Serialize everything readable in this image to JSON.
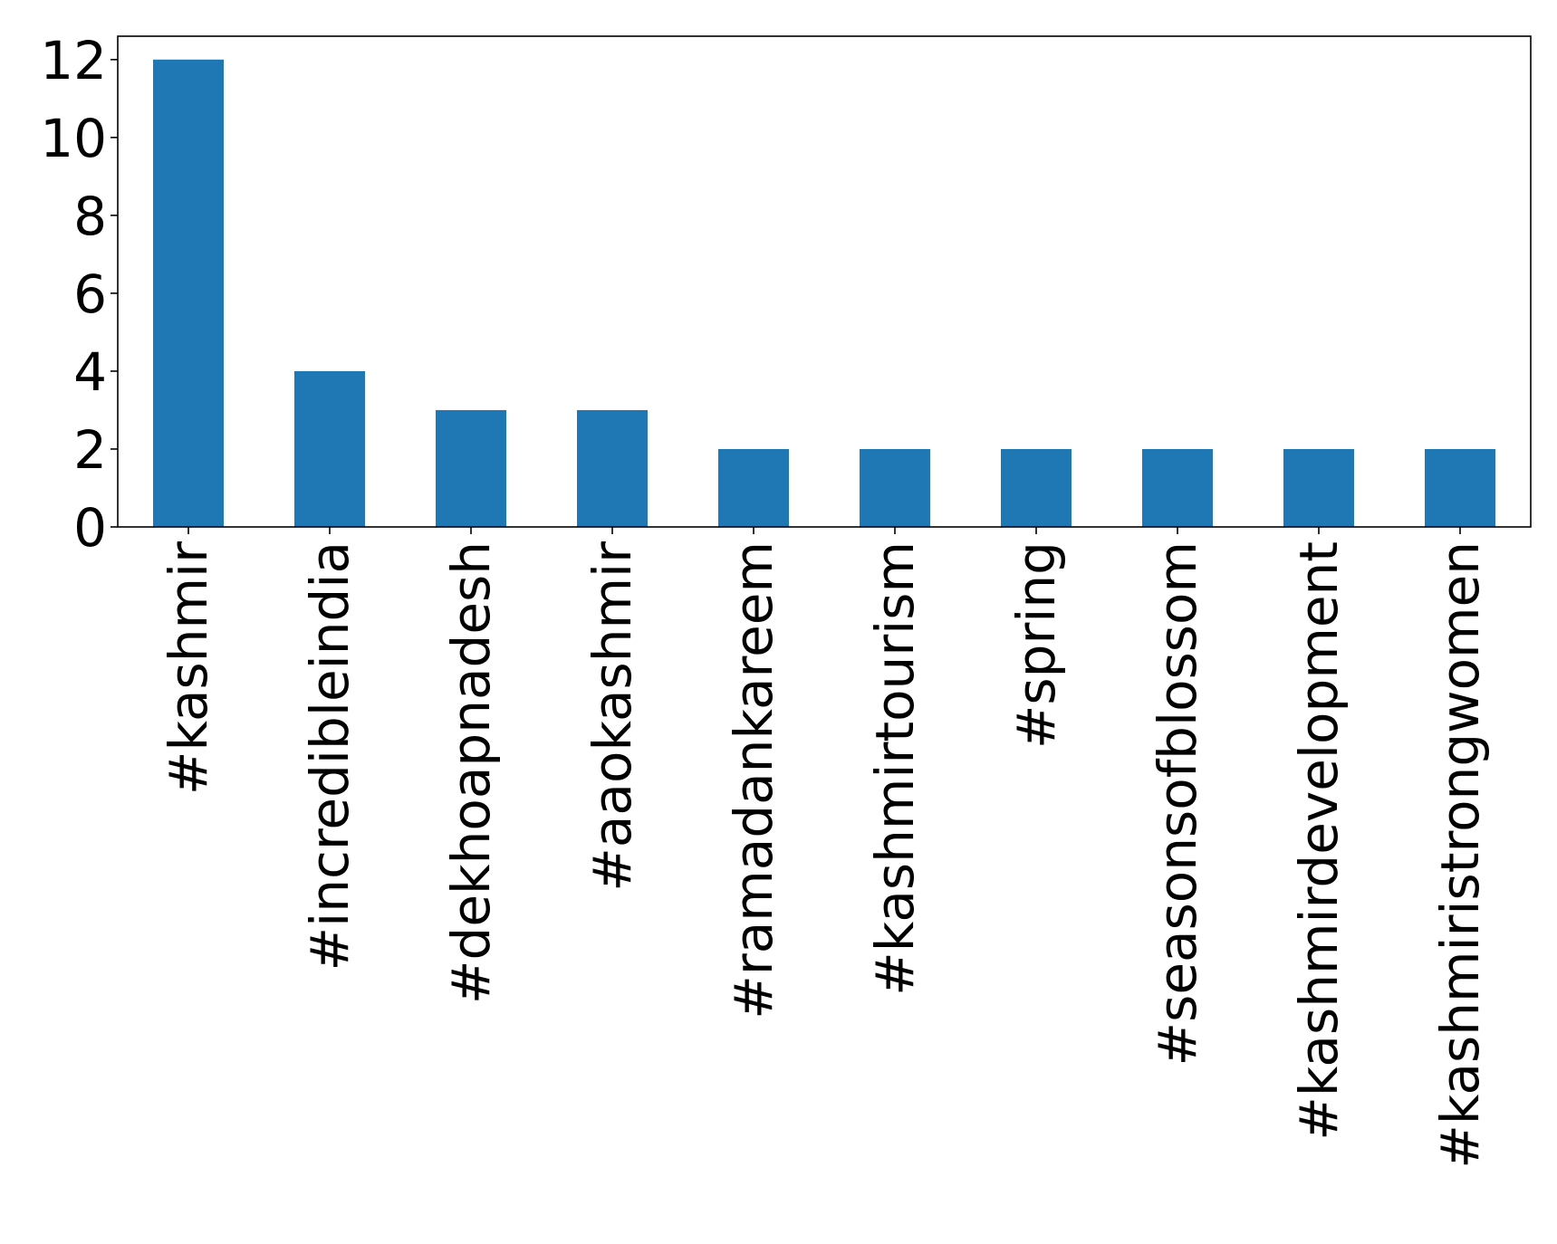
{
  "chart_data": {
    "type": "bar",
    "title": "",
    "xlabel": "",
    "ylabel": "",
    "categories": [
      "#kashmir",
      "#incredibleindia",
      "#dekhoapnadesh",
      "#aaokashmir",
      "#ramadankareem",
      "#kashmirtourism",
      "#spring",
      "#seasonsofblossom",
      "#kashmirdevelopment",
      "#kashmiristrongwomen"
    ],
    "values": [
      12,
      4,
      3,
      3,
      2,
      2,
      2,
      2,
      2,
      2
    ],
    "ylim": [
      0,
      12.6
    ],
    "yticks": [
      0,
      2,
      4,
      6,
      8,
      10,
      12
    ],
    "grid": false,
    "legend": "none",
    "bar_color": "#1f77b4"
  }
}
